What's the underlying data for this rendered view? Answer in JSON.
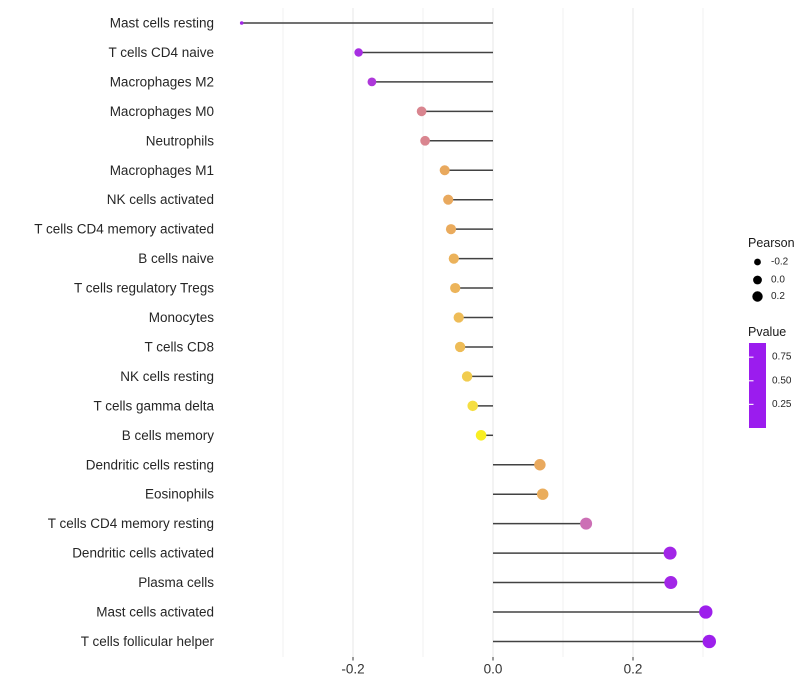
{
  "chart_data": {
    "type": "lollipop",
    "title": "",
    "xlabel": "",
    "ylabel": "",
    "x_tick_labels": [
      "-0.2",
      "0.0",
      "0.2"
    ],
    "x_tick_values": [
      -0.2,
      0.0,
      0.2
    ],
    "x_minor_grid_values": [
      -0.3,
      -0.1,
      0.1,
      0.3
    ],
    "x_range": [
      -0.39,
      0.34
    ],
    "baseline": 0.0,
    "grid": "vertical major and minor gridlines, light gray on white, no horizontal gridlines",
    "legend_position": "right",
    "points": [
      {
        "label": "Mast cells resting",
        "pearson": -0.359,
        "pvalue": 0.04
      },
      {
        "label": "T cells CD4 naive",
        "pearson": -0.192,
        "pvalue": 0.07
      },
      {
        "label": "Macrophages M2",
        "pearson": -0.173,
        "pvalue": 0.11
      },
      {
        "label": "Macrophages M0",
        "pearson": -0.102,
        "pvalue": 0.4
      },
      {
        "label": "Neutrophils",
        "pearson": -0.097,
        "pvalue": 0.4
      },
      {
        "label": "Macrophages M1",
        "pearson": -0.069,
        "pvalue": 0.54
      },
      {
        "label": "NK cells activated",
        "pearson": -0.064,
        "pvalue": 0.54
      },
      {
        "label": "T cells CD4 memory activated",
        "pearson": -0.06,
        "pvalue": 0.55
      },
      {
        "label": "B cells naive",
        "pearson": -0.056,
        "pvalue": 0.58
      },
      {
        "label": "T cells regulatory  Tregs",
        "pearson": -0.054,
        "pvalue": 0.59
      },
      {
        "label": "Monocytes",
        "pearson": -0.049,
        "pvalue": 0.63
      },
      {
        "label": "T cells CD8",
        "pearson": -0.047,
        "pvalue": 0.63
      },
      {
        "label": "NK cells resting",
        "pearson": -0.037,
        "pvalue": 0.7
      },
      {
        "label": "T cells gamma delta",
        "pearson": -0.029,
        "pvalue": 0.78
      },
      {
        "label": "B cells memory",
        "pearson": -0.017,
        "pvalue": 0.88
      },
      {
        "label": "Dendritic cells resting",
        "pearson": 0.067,
        "pvalue": 0.54
      },
      {
        "label": "Eosinophils",
        "pearson": 0.071,
        "pvalue": 0.56
      },
      {
        "label": "T cells CD4 memory resting",
        "pearson": 0.133,
        "pvalue": 0.27
      },
      {
        "label": "Dendritic cells activated",
        "pearson": 0.253,
        "pvalue": 0.04
      },
      {
        "label": "Plasma cells",
        "pearson": 0.254,
        "pvalue": 0.04
      },
      {
        "label": "Mast cells activated",
        "pearson": 0.304,
        "pvalue": 0.01
      },
      {
        "label": "T cells follicular helper",
        "pearson": 0.309,
        "pvalue": 0.01
      }
    ],
    "legend": {
      "size_legend": {
        "title": "Pearson",
        "labels": [
          "-0.2",
          "0.0",
          "0.2"
        ],
        "values": [
          -0.2,
          0.0,
          0.2
        ]
      },
      "color_legend": {
        "title": "Pvalue",
        "tick_labels": [
          "0.75",
          "0.50",
          "0.25"
        ],
        "tick_values": [
          0.75,
          0.5,
          0.25
        ],
        "range": [
          0.0,
          0.9
        ]
      }
    },
    "colors": {
      "background": "#FFFFFF",
      "stem": "#424242",
      "axis_text": "#333333",
      "y_label_text": "#262626",
      "legend_text": "#1A1A1A",
      "grid_major": "#E7E7E7",
      "grid_minor": "#F2F2F2",
      "legend_dot": "#000000",
      "pvalue_scale_stops": [
        {
          "t": 0.0,
          "color": "#9B1CEE"
        },
        {
          "t": 0.15,
          "color": "#B23ED6"
        },
        {
          "t": 0.3,
          "color": "#CC6FB5"
        },
        {
          "t": 0.45,
          "color": "#D9868E"
        },
        {
          "t": 0.6,
          "color": "#E9A95E"
        },
        {
          "t": 0.75,
          "color": "#F0C653"
        },
        {
          "t": 0.9,
          "color": "#F6E53D"
        },
        {
          "t": 1.0,
          "color": "#F8F01C"
        }
      ]
    }
  }
}
